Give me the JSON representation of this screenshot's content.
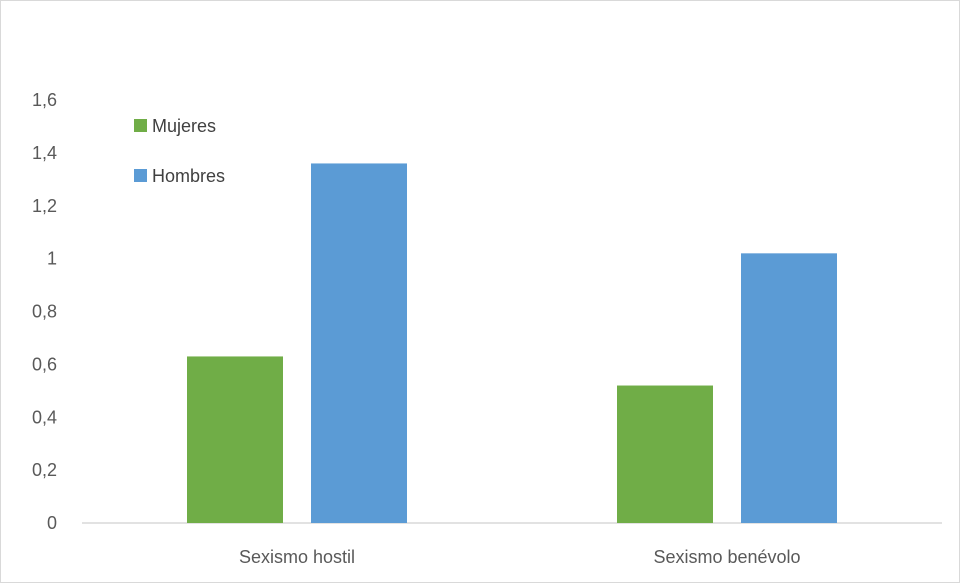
{
  "chart_data": {
    "type": "bar",
    "categories": [
      "Sexismo hostil",
      "Sexismo benévolo"
    ],
    "series": [
      {
        "name": "Mujeres",
        "values": [
          0.63,
          0.52
        ],
        "color": "#70ad47"
      },
      {
        "name": "Hombres",
        "values": [
          1.36,
          1.02
        ],
        "color": "#5b9bd5"
      }
    ],
    "yticks": [
      "0",
      "0,2",
      "0,4",
      "0,6",
      "0,8",
      "1",
      "1,2",
      "1,4",
      "1,6"
    ],
    "ylim": [
      0,
      1.6
    ],
    "grid": false,
    "legend": "top-left",
    "axis_color": "#d9d9d9"
  }
}
